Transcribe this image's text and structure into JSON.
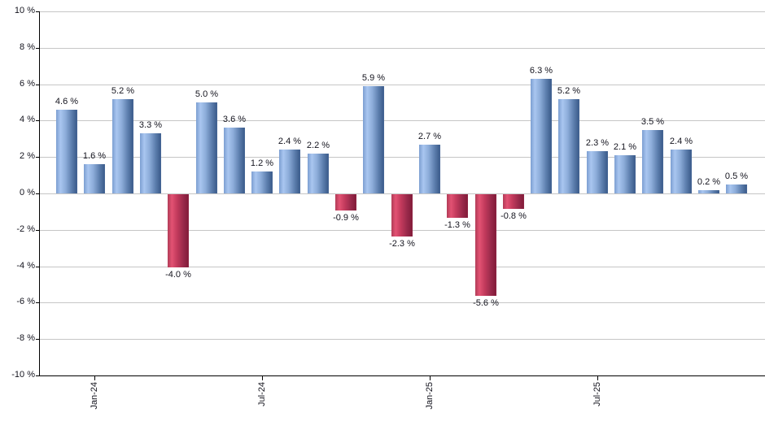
{
  "chart_data": {
    "type": "bar",
    "title": "",
    "description": "Monthly total return percentages, positive months blue, negative months red",
    "unit": "%",
    "values": [
      4.6,
      1.6,
      5.2,
      3.3,
      -4.0,
      5.0,
      3.6,
      1.2,
      2.4,
      2.2,
      -0.9,
      5.9,
      -2.3,
      2.7,
      -1.3,
      -5.6,
      -0.8,
      6.3,
      5.2,
      2.3,
      2.1,
      3.5,
      2.4,
      0.2,
      0.5
    ],
    "bar_labels": [
      "4.6 %",
      "1.6 %",
      "5.2 %",
      "3.3 %",
      "-4.0 %",
      "5.0 %",
      "3.6 %",
      "1.2 %",
      "2.4 %",
      "2.2 %",
      "-0.9 %",
      "5.9 %",
      "-2.3 %",
      "2.7 %",
      "-1.3 %",
      "-5.6 %",
      "-0.8 %",
      "6.3 %",
      "5.2 %",
      "2.3 %",
      "2.1 %",
      "3.5 %",
      "2.4 %",
      "0.2 %",
      "0.5 %"
    ],
    "x_ticks": [
      {
        "label": "Jan-24",
        "bar_index": 1
      },
      {
        "label": "Jul-24",
        "bar_index": 7
      },
      {
        "label": "Jan-25",
        "bar_index": 13
      },
      {
        "label": "Jul-25",
        "bar_index": 19
      }
    ],
    "y_tick_labels": [
      "10 %",
      "8 %",
      "6 %",
      "4 %",
      "2 %",
      "0 %",
      "-2 %",
      "-4 %",
      "-6 %",
      "-8 %",
      "-10 %"
    ],
    "ylim": [
      -10,
      10
    ],
    "y_step": 2,
    "grid": true,
    "legend": "none",
    "colors": {
      "positive_gradient": [
        {
          "color": "#7c9ed1",
          "pos": "0%"
        },
        {
          "color": "#a9c6f0",
          "pos": "20%"
        },
        {
          "color": "#8cacd9",
          "pos": "45%"
        },
        {
          "color": "#5a7cab",
          "pos": "75%"
        },
        {
          "color": "#3f5f8e",
          "pos": "95%"
        },
        {
          "color": "#4a6b99",
          "pos": "100%"
        }
      ],
      "negative_gradient": [
        {
          "color": "#b23c57",
          "pos": "0%"
        },
        {
          "color": "#e25273",
          "pos": "20%"
        },
        {
          "color": "#c23a5c",
          "pos": "45%"
        },
        {
          "color": "#98294a",
          "pos": "75%"
        },
        {
          "color": "#851d3b",
          "pos": "95%"
        },
        {
          "color": "#93294a",
          "pos": "100%"
        }
      ],
      "gridline": "#c6c6c6",
      "axis": "#000000",
      "label": "#14141e",
      "background": "#ffffff"
    }
  }
}
